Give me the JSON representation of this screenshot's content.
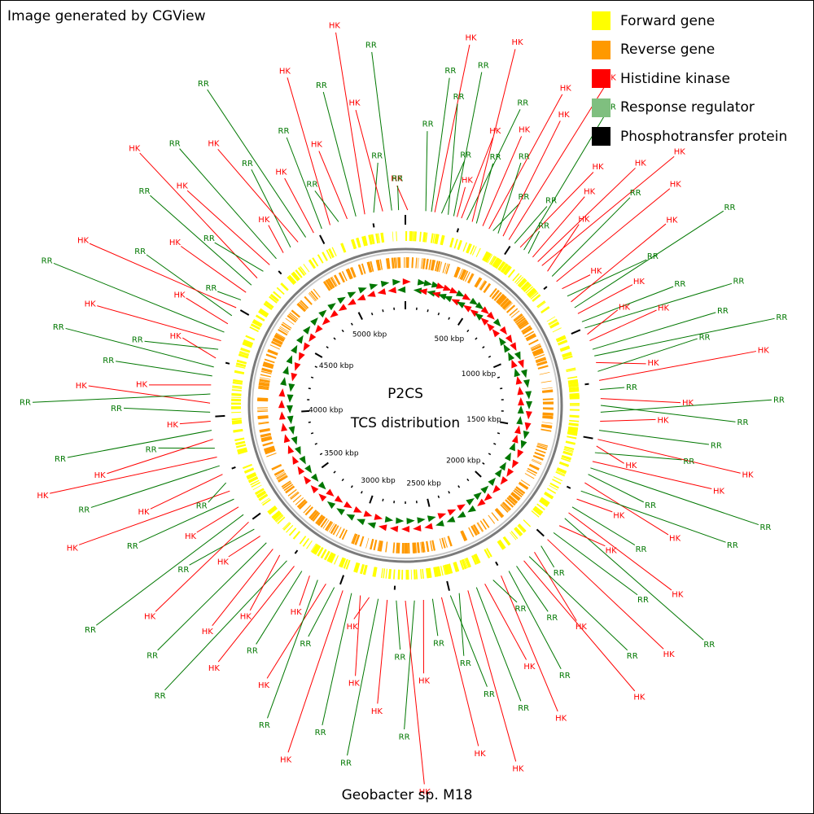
{
  "credit": "Image generated by CGView",
  "footer": "Geobacter sp. M18",
  "center": {
    "line1": "P2CS",
    "line2": "TCS distribution"
  },
  "legend": [
    {
      "label": "Forward gene",
      "color": "#ffff00",
      "icon": "forward-gene-swatch"
    },
    {
      "label": "Reverse gene",
      "color": "#ff9900",
      "icon": "reverse-gene-swatch"
    },
    {
      "label": "Histidine kinase",
      "color": "#ff0000",
      "icon": "histidine-kinase-swatch"
    },
    {
      "label": "Response regulator",
      "color": "#7fbf7f",
      "icon": "response-regulator-swatch"
    },
    {
      "label": "Phosphotransfer protein",
      "color": "#000000",
      "icon": "phosphotransfer-protein-swatch"
    }
  ],
  "genome_size_kbp": 5400,
  "kbp_labels": [
    "500 kbp",
    "1000 kbp",
    "1500 kbp",
    "2000 kbp",
    "2500 kbp",
    "3000 kbp",
    "3500 kbp",
    "4000 kbp",
    "4500 kbp",
    "5000 kbp"
  ],
  "kbp_positions": [
    500,
    1000,
    1500,
    2000,
    2500,
    3000,
    3500,
    4000,
    4500,
    5000
  ],
  "label_colors": {
    "HK": "#ff0000",
    "RR": "#007700"
  },
  "tcs_features": [
    {
      "kbp": 10,
      "type": "HK"
    },
    {
      "kbp": 90,
      "type": "RR"
    },
    {
      "kbp": 115,
      "type": "RR"
    },
    {
      "kbp": 130,
      "type": "HK"
    },
    {
      "kbp": 160,
      "type": "RR"
    },
    {
      "kbp": 190,
      "type": "RR"
    },
    {
      "kbp": 215,
      "type": "RR"
    },
    {
      "kbp": 230,
      "type": "HK"
    },
    {
      "kbp": 250,
      "type": "HK"
    },
    {
      "kbp": 275,
      "type": "RR"
    },
    {
      "kbp": 300,
      "type": "HK"
    },
    {
      "kbp": 320,
      "type": "RR"
    },
    {
      "kbp": 350,
      "type": "HK"
    },
    {
      "kbp": 380,
      "type": "HK"
    },
    {
      "kbp": 400,
      "type": "RR"
    },
    {
      "kbp": 425,
      "type": "RR"
    },
    {
      "kbp": 450,
      "type": "HK"
    },
    {
      "kbp": 480,
      "type": "HK"
    },
    {
      "kbp": 510,
      "type": "RR"
    },
    {
      "kbp": 540,
      "type": "HK"
    },
    {
      "kbp": 560,
      "type": "RR"
    },
    {
      "kbp": 585,
      "type": "RR"
    },
    {
      "kbp": 610,
      "type": "HK"
    },
    {
      "kbp": 640,
      "type": "HK"
    },
    {
      "kbp": 665,
      "type": "HK"
    },
    {
      "kbp": 700,
      "type": "HK"
    },
    {
      "kbp": 730,
      "type": "RR"
    },
    {
      "kbp": 760,
      "type": "HK"
    },
    {
      "kbp": 800,
      "type": "HK"
    },
    {
      "kbp": 840,
      "type": "RR"
    },
    {
      "kbp": 870,
      "type": "HK"
    },
    {
      "kbp": 900,
      "type": "RR"
    },
    {
      "kbp": 930,
      "type": "HK"
    },
    {
      "kbp": 970,
      "type": "RR"
    },
    {
      "kbp": 1000,
      "type": "RR"
    },
    {
      "kbp": 1030,
      "type": "HK"
    },
    {
      "kbp": 1060,
      "type": "HK"
    },
    {
      "kbp": 1100,
      "type": "RR"
    },
    {
      "kbp": 1130,
      "type": "RR"
    },
    {
      "kbp": 1160,
      "type": "HK"
    },
    {
      "kbp": 1200,
      "type": "RR"
    },
    {
      "kbp": 1240,
      "type": "HK"
    },
    {
      "kbp": 1280,
      "type": "RR"
    },
    {
      "kbp": 1320,
      "type": "HK"
    },
    {
      "kbp": 1350,
      "type": "RR"
    },
    {
      "kbp": 1380,
      "type": "RR"
    },
    {
      "kbp": 1420,
      "type": "HK"
    },
    {
      "kbp": 1460,
      "type": "RR"
    },
    {
      "kbp": 1500,
      "type": "HK"
    },
    {
      "kbp": 1530,
      "type": "HK"
    },
    {
      "kbp": 1560,
      "type": "RR"
    },
    {
      "kbp": 1600,
      "type": "HK"
    },
    {
      "kbp": 1630,
      "type": "RR"
    },
    {
      "kbp": 1660,
      "type": "RR"
    },
    {
      "kbp": 1700,
      "type": "HK"
    },
    {
      "kbp": 1740,
      "type": "RR"
    },
    {
      "kbp": 1780,
      "type": "HK"
    },
    {
      "kbp": 1820,
      "type": "RR"
    },
    {
      "kbp": 1850,
      "type": "HK"
    },
    {
      "kbp": 1880,
      "type": "RR"
    },
    {
      "kbp": 1920,
      "type": "HK"
    },
    {
      "kbp": 1960,
      "type": "RR"
    },
    {
      "kbp": 2000,
      "type": "HK"
    },
    {
      "kbp": 2040,
      "type": "RR"
    },
    {
      "kbp": 2080,
      "type": "HK"
    },
    {
      "kbp": 2110,
      "type": "RR"
    },
    {
      "kbp": 2140,
      "type": "HK"
    },
    {
      "kbp": 2180,
      "type": "RR"
    },
    {
      "kbp": 2220,
      "type": "RR"
    },
    {
      "kbp": 2260,
      "type": "HK"
    },
    {
      "kbp": 2300,
      "type": "RR"
    },
    {
      "kbp": 2340,
      "type": "HK"
    },
    {
      "kbp": 2380,
      "type": "RR"
    },
    {
      "kbp": 2420,
      "type": "HK"
    },
    {
      "kbp": 2460,
      "type": "RR"
    },
    {
      "kbp": 2500,
      "type": "RR"
    },
    {
      "kbp": 2540,
      "type": "HK"
    },
    {
      "kbp": 2580,
      "type": "RR"
    },
    {
      "kbp": 2620,
      "type": "HK"
    },
    {
      "kbp": 2660,
      "type": "RR"
    },
    {
      "kbp": 2700,
      "type": "HK"
    },
    {
      "kbp": 2740,
      "type": "RR"
    },
    {
      "kbp": 2780,
      "type": "HK"
    },
    {
      "kbp": 2820,
      "type": "RR"
    },
    {
      "kbp": 2860,
      "type": "HK"
    },
    {
      "kbp": 2900,
      "type": "HK"
    },
    {
      "kbp": 2940,
      "type": "RR"
    },
    {
      "kbp": 2980,
      "type": "HK"
    },
    {
      "kbp": 3020,
      "type": "RR"
    },
    {
      "kbp": 3060,
      "type": "HK"
    },
    {
      "kbp": 3100,
      "type": "RR"
    },
    {
      "kbp": 3140,
      "type": "HK"
    },
    {
      "kbp": 3180,
      "type": "RR"
    },
    {
      "kbp": 3220,
      "type": "HK"
    },
    {
      "kbp": 3260,
      "type": "RR"
    },
    {
      "kbp": 3300,
      "type": "HK"
    },
    {
      "kbp": 3340,
      "type": "HK"
    },
    {
      "kbp": 3380,
      "type": "RR"
    },
    {
      "kbp": 3420,
      "type": "HK"
    },
    {
      "kbp": 3460,
      "type": "RR"
    },
    {
      "kbp": 3500,
      "type": "HK"
    },
    {
      "kbp": 3540,
      "type": "RR"
    },
    {
      "kbp": 3580,
      "type": "HK"
    },
    {
      "kbp": 3620,
      "type": "RR"
    },
    {
      "kbp": 3660,
      "type": "HK"
    },
    {
      "kbp": 3700,
      "type": "RR"
    },
    {
      "kbp": 3740,
      "type": "HK"
    },
    {
      "kbp": 3780,
      "type": "RR"
    },
    {
      "kbp": 3820,
      "type": "HK"
    },
    {
      "kbp": 3860,
      "type": "RR"
    },
    {
      "kbp": 3900,
      "type": "HK"
    },
    {
      "kbp": 3940,
      "type": "RR"
    },
    {
      "kbp": 3980,
      "type": "HK"
    },
    {
      "kbp": 4020,
      "type": "RR"
    },
    {
      "kbp": 4060,
      "type": "HK"
    },
    {
      "kbp": 4100,
      "type": "RR"
    },
    {
      "kbp": 4140,
      "type": "HK"
    },
    {
      "kbp": 4180,
      "type": "RR"
    },
    {
      "kbp": 4220,
      "type": "RR"
    },
    {
      "kbp": 4260,
      "type": "HK"
    },
    {
      "kbp": 4300,
      "type": "RR"
    },
    {
      "kbp": 4340,
      "type": "HK"
    },
    {
      "kbp": 4380,
      "type": "RR"
    },
    {
      "kbp": 4420,
      "type": "HK"
    },
    {
      "kbp": 4460,
      "type": "RR"
    },
    {
      "kbp": 4500,
      "type": "HK"
    },
    {
      "kbp": 4540,
      "type": "RR"
    },
    {
      "kbp": 4580,
      "type": "HK"
    },
    {
      "kbp": 4620,
      "type": "RR"
    },
    {
      "kbp": 4660,
      "type": "HK"
    },
    {
      "kbp": 4700,
      "type": "RR"
    },
    {
      "kbp": 4740,
      "type": "HK"
    },
    {
      "kbp": 4780,
      "type": "RR"
    },
    {
      "kbp": 4820,
      "type": "HK"
    },
    {
      "kbp": 4860,
      "type": "RR"
    },
    {
      "kbp": 4900,
      "type": "HK"
    },
    {
      "kbp": 4940,
      "type": "RR"
    },
    {
      "kbp": 4980,
      "type": "HK"
    },
    {
      "kbp": 5020,
      "type": "RR"
    },
    {
      "kbp": 5060,
      "type": "HK"
    },
    {
      "kbp": 5100,
      "type": "RR"
    },
    {
      "kbp": 5140,
      "type": "HK"
    },
    {
      "kbp": 5180,
      "type": "RR"
    },
    {
      "kbp": 5220,
      "type": "HK"
    },
    {
      "kbp": 5260,
      "type": "RR"
    },
    {
      "kbp": 5300,
      "type": "HK"
    },
    {
      "kbp": 5340,
      "type": "RR"
    },
    {
      "kbp": 5370,
      "type": "RR"
    }
  ]
}
